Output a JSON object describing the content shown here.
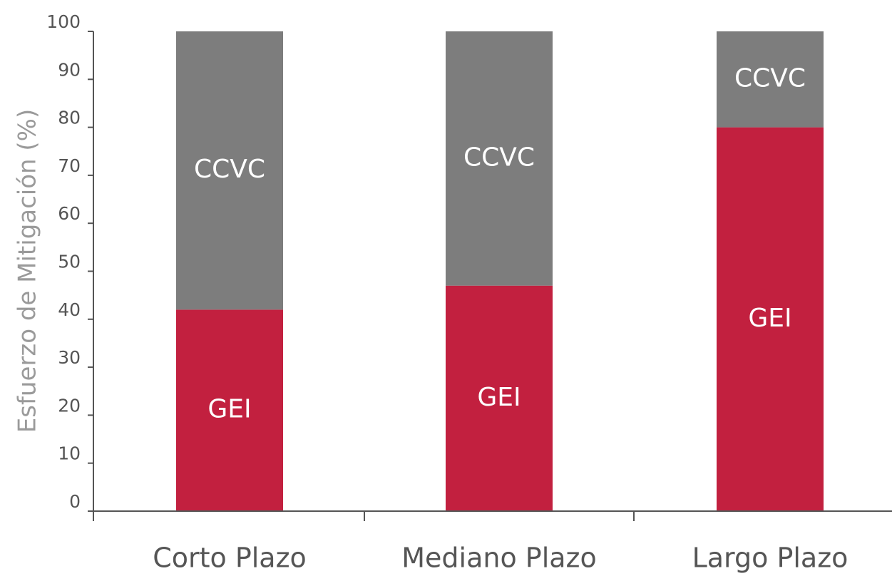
{
  "chart_data": {
    "type": "stacked_bar",
    "y_label": "Esfuerzo de Mitigación (%)",
    "categories": [
      "Corto Plazo",
      "Mediano Plazo",
      "Largo Plazo"
    ],
    "series": [
      {
        "name": "GEI",
        "color": "#c2203f",
        "values": [
          42,
          47,
          80
        ]
      },
      {
        "name": "CCVC",
        "color": "#7d7d7d",
        "values": [
          58,
          53,
          20
        ]
      }
    ],
    "ylim": [
      0,
      100
    ],
    "yticks": [
      0,
      10,
      20,
      30,
      40,
      50,
      60,
      70,
      80,
      90,
      100
    ]
  }
}
